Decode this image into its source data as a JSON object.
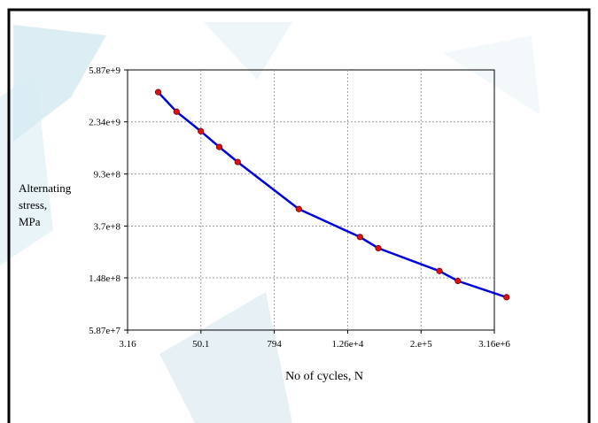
{
  "chart_data": {
    "type": "line",
    "title": "",
    "xlabel": "No of cycles, N",
    "ylabel_lines": [
      "Alternating",
      "stress,",
      "MPa"
    ],
    "x_scale": "log",
    "y_scale": "log",
    "xlim": [
      3.16,
      3160000
    ],
    "ylim": [
      58700000,
      5870000000
    ],
    "x_ticks": [
      {
        "value": 3.16,
        "label": "3.16"
      },
      {
        "value": 50.1,
        "label": "50.1"
      },
      {
        "value": 794,
        "label": "794"
      },
      {
        "value": 12600,
        "label": "1.26e+4"
      },
      {
        "value": 200000,
        "label": "2.e+5"
      },
      {
        "value": 3160000,
        "label": "3.16e+6"
      }
    ],
    "y_ticks": [
      {
        "value": 58700000,
        "label": "5.87e+7"
      },
      {
        "value": 148000000,
        "label": "1.48e+8"
      },
      {
        "value": 370000000,
        "label": "3.7e+8"
      },
      {
        "value": 930000000,
        "label": "9.3e+8"
      },
      {
        "value": 2340000000,
        "label": "2.34e+9"
      },
      {
        "value": 5870000000,
        "label": "5.87e+9"
      }
    ],
    "grid": true,
    "series": [
      {
        "color": "#0000dd",
        "marker_color": "#dd1111",
        "points": [
          {
            "x": 10,
            "y": 3960000000
          },
          {
            "x": 20,
            "y": 2800000000
          },
          {
            "x": 50,
            "y": 1980000000
          },
          {
            "x": 100,
            "y": 1500000000
          },
          {
            "x": 200,
            "y": 1150000000
          },
          {
            "x": 2000,
            "y": 500000000
          },
          {
            "x": 20000,
            "y": 305000000
          },
          {
            "x": 40000,
            "y": 250000000
          },
          {
            "x": 400000,
            "y": 167000000
          },
          {
            "x": 800000,
            "y": 140000000
          },
          {
            "x": 5000000,
            "y": 105000000
          }
        ]
      }
    ]
  }
}
